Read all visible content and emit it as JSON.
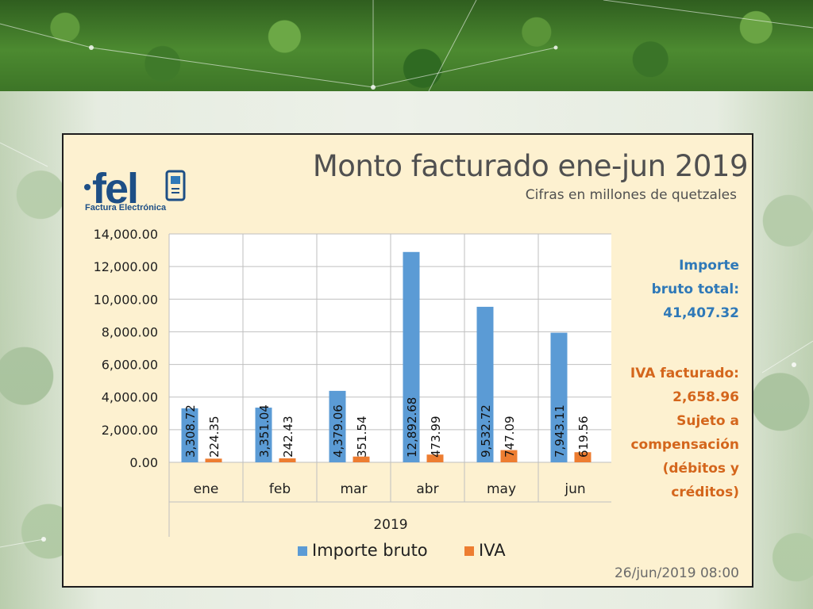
{
  "colors": {
    "importe": "#5b9bd5",
    "iva": "#ed7d31",
    "accent_blue": "#2f79b8",
    "accent_orange": "#d4661c"
  },
  "logo": {
    "icon": "fel-logo-icon",
    "subtitle": "Factura Electrónica"
  },
  "chart_data": {
    "type": "bar",
    "title": "Monto facturado ene-jun 2019",
    "subtitle": "Cifras en millones de quetzales",
    "xlabel": "2019",
    "ylabel": "",
    "categories": [
      "ene",
      "feb",
      "mar",
      "abr",
      "may",
      "jun"
    ],
    "series": [
      {
        "name": "Importe bruto",
        "values": [
          3308.72,
          3351.04,
          4379.06,
          12892.68,
          9532.72,
          7943.11
        ],
        "labels": [
          "3,308.72",
          "3,351.04",
          "4,379.06",
          "12,892.68",
          "9,532.72",
          "7,943.11"
        ]
      },
      {
        "name": "IVA",
        "values": [
          224.35,
          242.43,
          351.54,
          473.99,
          747.09,
          619.56
        ],
        "labels": [
          "224.35",
          "242.43",
          "351.54",
          "473.99",
          "747.09",
          "619.56"
        ]
      }
    ],
    "ylim": [
      0,
      14000
    ],
    "yticks": [
      0,
      2000,
      4000,
      6000,
      8000,
      10000,
      12000,
      14000
    ],
    "ytick_labels": [
      "0.00",
      "2,000.00",
      "4,000.00",
      "6,000.00",
      "8,000.00",
      "10,000.00",
      "12,000.00",
      "14,000.00"
    ],
    "grid": true,
    "legend_position": "bottom"
  },
  "side_panel": {
    "total_lines": [
      "Importe",
      "bruto total:",
      "41,407.32"
    ],
    "iva_lines": [
      "IVA facturado:",
      "2,658.96",
      "Sujeto a",
      "compensación",
      "(débitos y",
      "créditos)"
    ]
  },
  "timestamp": "26/jun/2019 08:00"
}
